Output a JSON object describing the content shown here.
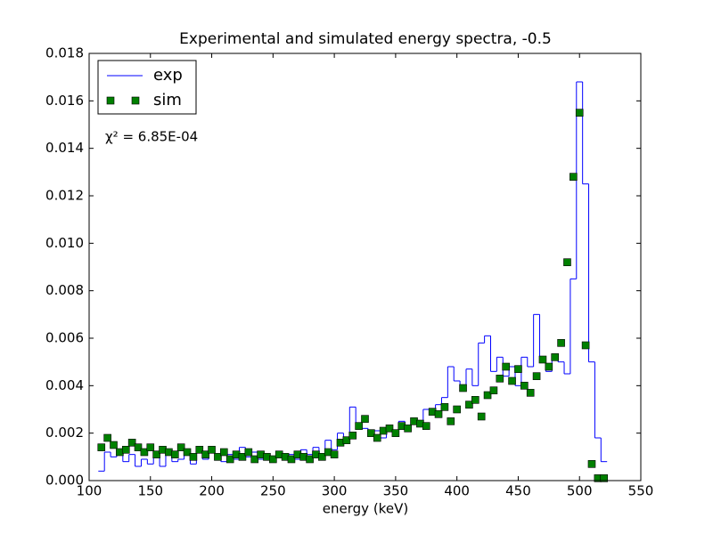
{
  "chart_data": {
    "type": "line",
    "title": "Experimental and simulated energy spectra, -0.5",
    "x_label": "energy (keV)",
    "annotation": "χ² = 6.85E-04",
    "legend": "upper left",
    "xlim": [
      100,
      550
    ],
    "xticks": [
      100,
      150,
      200,
      250,
      300,
      350,
      400,
      450,
      500,
      550
    ],
    "ylim": [
      0,
      0.018
    ],
    "yticks": [
      {
        "value": 0,
        "label": "0.000"
      },
      {
        "value": 0.002,
        "label": "0.002"
      },
      {
        "value": 0.004,
        "label": "0.004"
      },
      {
        "value": 0.006,
        "label": "0.006"
      },
      {
        "value": 0.008,
        "label": "0.008"
      },
      {
        "value": 0.01,
        "label": "0.010"
      },
      {
        "value": 0.012,
        "label": "0.012"
      },
      {
        "value": 0.014,
        "label": "0.014"
      },
      {
        "value": 0.016,
        "label": "0.016"
      },
      {
        "value": 0.018,
        "label": "0.018"
      }
    ],
    "x": [
      110,
      115,
      120,
      125,
      130,
      135,
      140,
      145,
      150,
      155,
      160,
      165,
      170,
      175,
      180,
      185,
      190,
      195,
      200,
      205,
      210,
      215,
      220,
      225,
      230,
      235,
      240,
      245,
      250,
      255,
      260,
      265,
      270,
      275,
      280,
      285,
      290,
      295,
      300,
      305,
      310,
      315,
      320,
      325,
      330,
      335,
      340,
      345,
      350,
      355,
      360,
      365,
      370,
      375,
      380,
      385,
      390,
      395,
      400,
      405,
      410,
      415,
      420,
      425,
      430,
      435,
      440,
      445,
      450,
      455,
      460,
      465,
      470,
      475,
      480,
      485,
      490,
      495,
      500,
      505,
      510,
      515,
      520
    ],
    "series": [
      {
        "name": "exp",
        "color": "#0000ff",
        "drawstyle": "steps-mid",
        "values": [
          0.0004,
          0.0012,
          0.001,
          0.0013,
          0.0008,
          0.0011,
          0.0006,
          0.0009,
          0.0007,
          0.001,
          0.0006,
          0.0012,
          0.0008,
          0.0009,
          0.0011,
          0.0007,
          0.0012,
          0.0009,
          0.0013,
          0.001,
          0.0008,
          0.0011,
          0.0009,
          0.0014,
          0.001,
          0.0012,
          0.0009,
          0.0011,
          0.0008,
          0.0012,
          0.001,
          0.0011,
          0.0009,
          0.0013,
          0.0011,
          0.0014,
          0.001,
          0.0017,
          0.0013,
          0.002,
          0.0018,
          0.0031,
          0.0024,
          0.0022,
          0.0019,
          0.0021,
          0.0018,
          0.0022,
          0.002,
          0.0025,
          0.0023,
          0.0026,
          0.0024,
          0.003,
          0.0028,
          0.0032,
          0.0035,
          0.0048,
          0.0042,
          0.0038,
          0.0047,
          0.004,
          0.0058,
          0.0061,
          0.0046,
          0.0052,
          0.0044,
          0.0048,
          0.004,
          0.0052,
          0.0048,
          0.007,
          0.005,
          0.0046,
          0.0052,
          0.005,
          0.0045,
          0.0085,
          0.0168,
          0.0125,
          0.005,
          0.0018,
          0.0008
        ]
      },
      {
        "name": "sim",
        "color": "#008000",
        "marker": "s",
        "values": [
          0.0014,
          0.0018,
          0.0015,
          0.0012,
          0.0013,
          0.0016,
          0.0014,
          0.0012,
          0.0014,
          0.0011,
          0.0013,
          0.0012,
          0.0011,
          0.0014,
          0.0012,
          0.001,
          0.0013,
          0.0011,
          0.0013,
          0.001,
          0.0012,
          0.0009,
          0.0011,
          0.001,
          0.0012,
          0.0009,
          0.0011,
          0.001,
          0.0009,
          0.0011,
          0.001,
          0.0009,
          0.0011,
          0.001,
          0.0009,
          0.0011,
          0.001,
          0.0012,
          0.0011,
          0.0016,
          0.0017,
          0.0019,
          0.0023,
          0.0026,
          0.002,
          0.0018,
          0.0021,
          0.0022,
          0.002,
          0.0023,
          0.0022,
          0.0025,
          0.0024,
          0.0023,
          0.0029,
          0.0028,
          0.0031,
          0.0025,
          0.003,
          0.0039,
          0.0032,
          0.0034,
          0.0027,
          0.0036,
          0.0038,
          0.0043,
          0.0048,
          0.0042,
          0.0047,
          0.004,
          0.0037,
          0.0044,
          0.0051,
          0.0048,
          0.0052,
          0.0058,
          0.0092,
          0.0128,
          0.0155,
          0.0057,
          0.0007,
          0.0001,
          0.0001
        ]
      }
    ]
  }
}
